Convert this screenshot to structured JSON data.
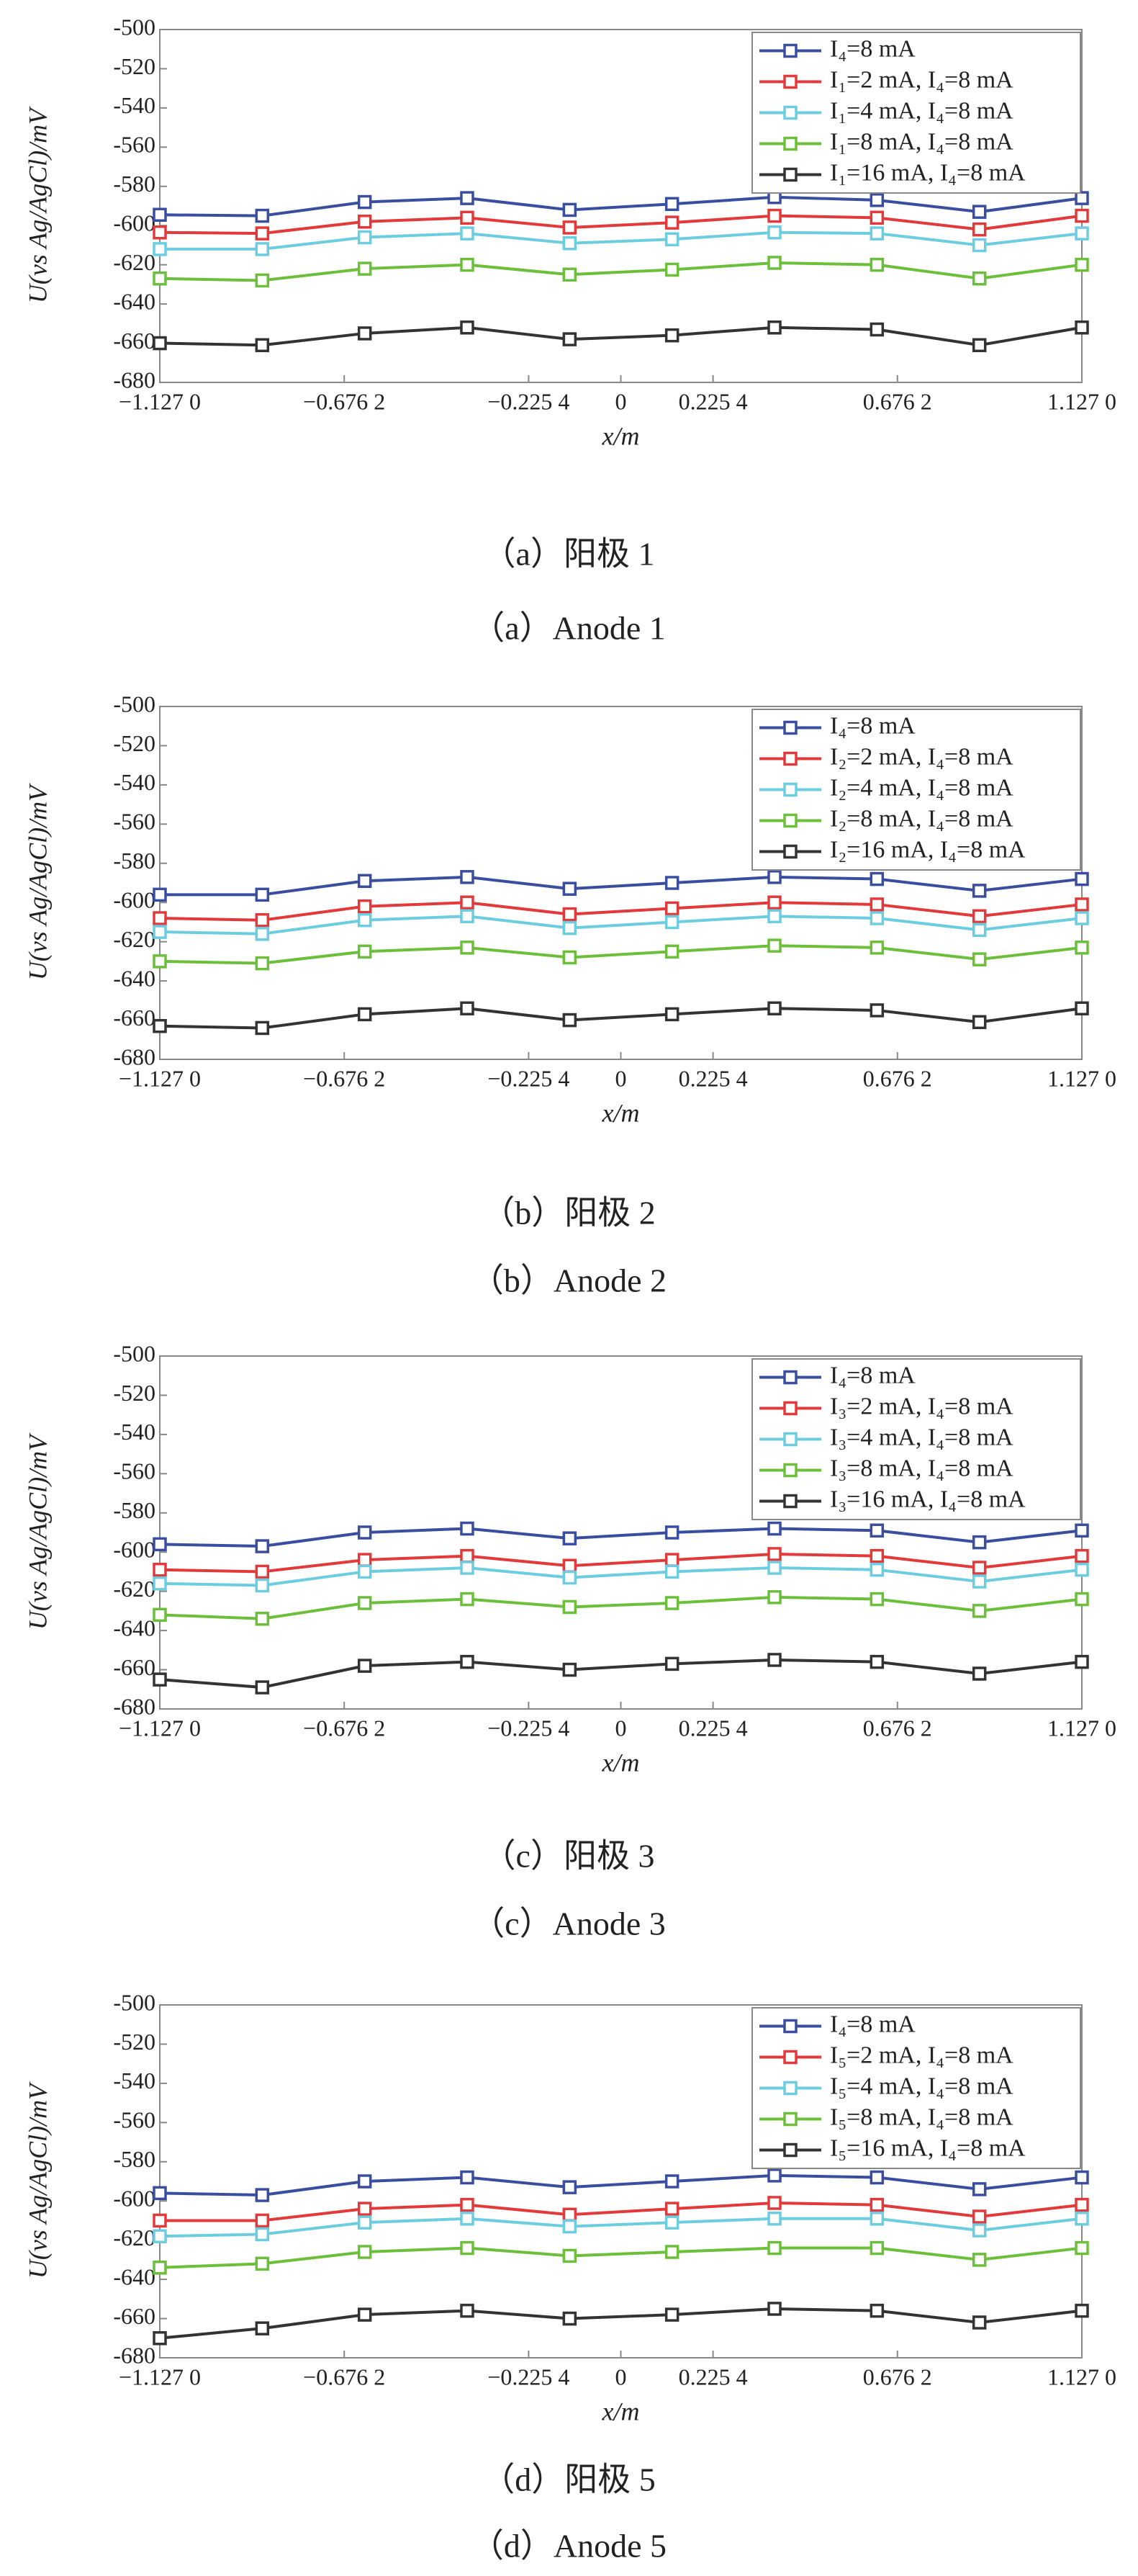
{
  "chart_data": [
    {
      "type": "line",
      "caption": "（a）阳极 1",
      "caption_en": "（a）Anode 1",
      "xlabel": "x/m",
      "ylabel": "U(vs Ag/AgCl)/mV",
      "xlim": [
        -1.127,
        1.127
      ],
      "ylim": [
        -680,
        -500
      ],
      "xticks": [
        {
          "value": -1.127,
          "label": "−1.127 0"
        },
        {
          "value": -0.6762,
          "label": "−0.676 2"
        },
        {
          "value": -0.2254,
          "label": "−0.225 4"
        },
        0,
        {
          "value": 0.2254,
          "label": "0.225 4"
        },
        {
          "value": 0.6762,
          "label": "0.676 2"
        },
        {
          "value": 1.127,
          "label": "1.127 0"
        }
      ],
      "yticks": [
        -680,
        -660,
        -640,
        -620,
        -600,
        -580,
        -560,
        -540,
        -520,
        -500
      ],
      "x": [
        -1.127,
        -0.8766,
        -0.6261,
        -0.3757,
        -0.1252,
        0.1252,
        0.3757,
        0.6261,
        0.8766,
        1.127
      ],
      "series": [
        {
          "name": "I₄=8 mA",
          "color": "#3a4ea0",
          "values": [
            -594.5,
            -595,
            -588,
            -586,
            -592,
            -589,
            -585.5,
            -587,
            -593,
            -586
          ]
        },
        {
          "name": "I₁=2 mA, I₄=8 mA",
          "color": "#e23a3a",
          "values": [
            -603.5,
            -604,
            -598,
            -596,
            -601,
            -598.5,
            -595,
            -596,
            -602,
            -595
          ]
        },
        {
          "name": "I₁=4 mA, I₄=8 mA",
          "color": "#6ccde0",
          "values": [
            -612,
            -612,
            -606,
            -604,
            -609,
            -607,
            -603.5,
            -604,
            -610,
            -604
          ]
        },
        {
          "name": "I₁=8 mA, I₄=8 mA",
          "color": "#6cbf3a",
          "values": [
            -627,
            -628,
            -622,
            -620,
            -625,
            -622.5,
            -619,
            -620,
            -627,
            -620
          ]
        },
        {
          "name": "I₁=16 mA, I₄=8 mA",
          "color": "#333333",
          "values": [
            -660,
            -661,
            -655,
            -652,
            -658,
            -656,
            -652,
            -653,
            -661,
            -652
          ]
        }
      ]
    },
    {
      "type": "line",
      "caption": "（b）阳极 2",
      "caption_en": "（b）Anode 2",
      "xlabel": "x/m",
      "ylabel": "U(vs Ag/AgCl)/mV",
      "xlim": [
        -1.127,
        1.127
      ],
      "ylim": [
        -680,
        -500
      ],
      "xticks": [
        {
          "value": -1.127,
          "label": "−1.127 0"
        },
        {
          "value": -0.6762,
          "label": "−0.676 2"
        },
        {
          "value": -0.2254,
          "label": "−0.225 4"
        },
        0,
        {
          "value": 0.2254,
          "label": "0.225 4"
        },
        {
          "value": 0.6762,
          "label": "0.676 2"
        },
        {
          "value": 1.127,
          "label": "1.127 0"
        }
      ],
      "yticks": [
        -680,
        -660,
        -640,
        -620,
        -600,
        -580,
        -560,
        -540,
        -520,
        -500
      ],
      "x": [
        -1.127,
        -0.8766,
        -0.6261,
        -0.3757,
        -0.1252,
        0.1252,
        0.3757,
        0.6261,
        0.8766,
        1.127
      ],
      "series": [
        {
          "name": "I₄=8 mA",
          "color": "#3a4ea0",
          "values": [
            -596,
            -596,
            -589,
            -587,
            -593,
            -590,
            -587,
            -588,
            -594,
            -588
          ]
        },
        {
          "name": "I₂=2 mA, I₄=8 mA",
          "color": "#e23a3a",
          "values": [
            -608,
            -609,
            -602,
            -600,
            -606,
            -603,
            -600,
            -601,
            -607,
            -601
          ]
        },
        {
          "name": "I₂=4 mA, I₄=8 mA",
          "color": "#6ccde0",
          "values": [
            -615,
            -616,
            -609,
            -607,
            -613,
            -610,
            -607,
            -608,
            -614,
            -608
          ]
        },
        {
          "name": "I₂=8 mA, I₄=8 mA",
          "color": "#6cbf3a",
          "values": [
            -630,
            -631,
            -625,
            -623,
            -628,
            -625,
            -622,
            -623,
            -629,
            -623
          ]
        },
        {
          "name": "I₂=16 mA, I₄=8 mA",
          "color": "#333333",
          "values": [
            -663,
            -664,
            -657,
            -654,
            -660,
            -657,
            -654,
            -655,
            -661,
            -654
          ]
        }
      ]
    },
    {
      "type": "line",
      "caption": "（c）阳极 3",
      "caption_en": "（c）Anode 3",
      "xlabel": "x/m",
      "ylabel": "U(vs Ag/AgCl)/mV",
      "xlim": [
        -1.127,
        1.127
      ],
      "ylim": [
        -680,
        -500
      ],
      "xticks": [
        {
          "value": -1.127,
          "label": "−1.127 0"
        },
        {
          "value": -0.6762,
          "label": "−0.676 2"
        },
        {
          "value": -0.2254,
          "label": "−0.225 4"
        },
        0,
        {
          "value": 0.2254,
          "label": "0.225 4"
        },
        {
          "value": 0.6762,
          "label": "0.676 2"
        },
        {
          "value": 1.127,
          "label": "1.127 0"
        }
      ],
      "yticks": [
        -680,
        -660,
        -640,
        -620,
        -600,
        -580,
        -560,
        -540,
        -520,
        -500
      ],
      "x": [
        -1.127,
        -0.8766,
        -0.6261,
        -0.3757,
        -0.1252,
        0.1252,
        0.3757,
        0.6261,
        0.8766,
        1.127
      ],
      "series": [
        {
          "name": "I₄=8 mA",
          "color": "#3a4ea0",
          "values": [
            -596,
            -597,
            -590,
            -588,
            -593,
            -590,
            -588,
            -589,
            -595,
            -589
          ]
        },
        {
          "name": "I₃=2 mA, I₄=8 mA",
          "color": "#e23a3a",
          "values": [
            -609,
            -610,
            -604,
            -602,
            -607,
            -604,
            -601,
            -602,
            -608,
            -602
          ]
        },
        {
          "name": "I₃=4 mA, I₄=8 mA",
          "color": "#6ccde0",
          "values": [
            -616,
            -617,
            -610,
            -608,
            -613,
            -610,
            -608,
            -609,
            -615,
            -609
          ]
        },
        {
          "name": "I₃=8 mA, I₄=8 mA",
          "color": "#6cbf3a",
          "values": [
            -632,
            -634,
            -626,
            -624,
            -628,
            -626,
            -623,
            -624,
            -630,
            -624
          ]
        },
        {
          "name": "I₃=16 mA, I₄=8 mA",
          "color": "#333333",
          "values": [
            -665,
            -669,
            -658,
            -656,
            -660,
            -657,
            -655,
            -656,
            -662,
            -656
          ]
        }
      ]
    },
    {
      "type": "line",
      "caption": "（d）阳极 5",
      "caption_en": "（d）Anode 5",
      "xlabel": "x/m",
      "ylabel": "U(vs Ag/AgCl)/mV",
      "xlim": [
        -1.127,
        1.127
      ],
      "ylim": [
        -680,
        -500
      ],
      "xticks": [
        {
          "value": -1.127,
          "label": "−1.127 0"
        },
        {
          "value": -0.6762,
          "label": "−0.676 2"
        },
        {
          "value": -0.2254,
          "label": "−0.225 4"
        },
        0,
        {
          "value": 0.2254,
          "label": "0.225 4"
        },
        {
          "value": 0.6762,
          "label": "0.676 2"
        },
        {
          "value": 1.127,
          "label": "1.127 0"
        }
      ],
      "yticks": [
        -680,
        -660,
        -640,
        -620,
        -600,
        -580,
        -560,
        -540,
        -520,
        -500
      ],
      "x": [
        -1.127,
        -0.8766,
        -0.6261,
        -0.3757,
        -0.1252,
        0.1252,
        0.3757,
        0.6261,
        0.8766,
        1.127
      ],
      "series": [
        {
          "name": "I₄=8 mA",
          "color": "#3a4ea0",
          "values": [
            -596,
            -597,
            -590,
            -588,
            -593,
            -590,
            -587,
            -588,
            -594,
            -588
          ]
        },
        {
          "name": "I₅=2 mA, I₄=8 mA",
          "color": "#e23a3a",
          "values": [
            -610,
            -610,
            -604,
            -602,
            -607,
            -604,
            -601,
            -602,
            -608,
            -602
          ]
        },
        {
          "name": "I₅=4 mA, I₄=8 mA",
          "color": "#6ccde0",
          "values": [
            -618,
            -617,
            -611,
            -609,
            -613,
            -611,
            -609,
            -609,
            -615,
            -609
          ]
        },
        {
          "name": "I₅=8 mA, I₄=8 mA",
          "color": "#6cbf3a",
          "values": [
            -634,
            -632,
            -626,
            -624,
            -628,
            -626,
            -624,
            -624,
            -630,
            -624
          ]
        },
        {
          "name": "I₅=16 mA, I₄=8 mA",
          "color": "#333333",
          "values": [
            -670,
            -665,
            -658,
            -656,
            -660,
            -658,
            -655,
            -656,
            -662,
            -656
          ]
        }
      ]
    }
  ]
}
